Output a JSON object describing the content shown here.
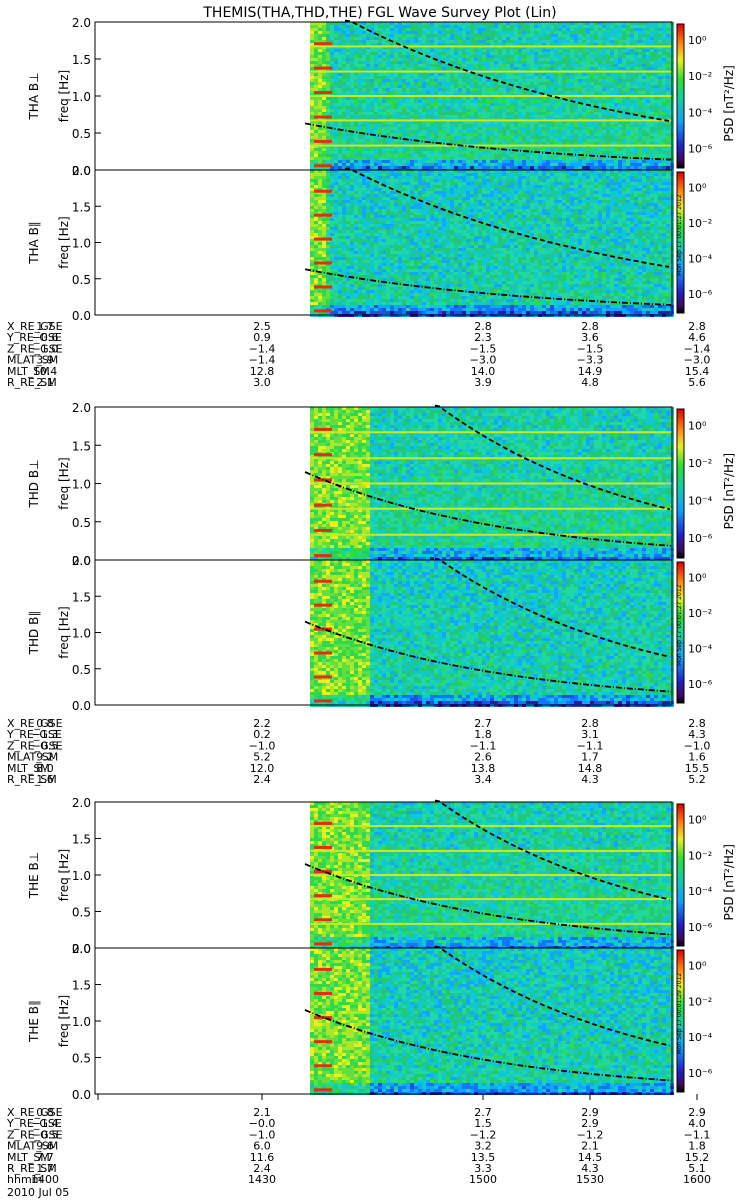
{
  "title": "THEMIS(THA,THD,THE) FGL Wave Survey Plot (Lin)",
  "ylabel_unit": "freq [Hz]",
  "colorbar_label": "PSD [nT²/Hz]",
  "colorbar_ticks": [
    "10⁰",
    "10⁻²",
    "10⁻⁴",
    "10⁻⁶"
  ],
  "stamps": [
    "Mon Sep 17 00:01:27 2012",
    "Mon Sep 17 00:01:27 2012",
    "Mon Sep 17 00:01:29 2012"
  ],
  "date_label": "2010 Jul 05",
  "colors": {
    "background_spectrum": "#20c8a0",
    "line_color": "#000000"
  },
  "chart_data": [
    {
      "type": "heatmap",
      "probe": "THA",
      "panel_label": "THA B⊥",
      "ylabel": "freq [Hz]",
      "ylim": [
        0,
        2.0
      ],
      "yticks": [
        "0.0",
        "0.5",
        "1.0",
        "1.5",
        "2.0"
      ],
      "data_start_hhmm": 1445
    },
    {
      "type": "heatmap",
      "probe": "THA",
      "panel_label": "THA B∥",
      "ylabel": "freq [Hz]",
      "ylim": [
        0,
        2.0
      ],
      "yticks": [
        "0.0",
        "0.5",
        "1.0",
        "1.5",
        "2.0"
      ],
      "data_start_hhmm": 1445
    },
    {
      "type": "heatmap",
      "probe": "THD",
      "panel_label": "THD B⊥",
      "ylabel": "freq [Hz]",
      "ylim": [
        0,
        2.0
      ],
      "yticks": [
        "0.0",
        "0.5",
        "1.0",
        "1.5",
        "2.0"
      ],
      "data_start_hhmm": 1445
    },
    {
      "type": "heatmap",
      "probe": "THD",
      "panel_label": "THD B∥",
      "ylabel": "freq [Hz]",
      "ylim": [
        0,
        2.0
      ],
      "yticks": [
        "0.0",
        "0.5",
        "1.0",
        "1.5",
        "2.0"
      ],
      "data_start_hhmm": 1445
    },
    {
      "type": "heatmap",
      "probe": "THE",
      "panel_label": "THE B⊥",
      "ylabel": "freq [Hz]",
      "ylim": [
        0,
        2.0
      ],
      "yticks": [
        "0.0",
        "0.5",
        "1.0",
        "1.5",
        "2.0"
      ],
      "data_start_hhmm": 1445
    },
    {
      "type": "heatmap",
      "probe": "THE",
      "panel_label": "THE B∥",
      "ylabel": "freq [Hz]",
      "ylim": [
        0,
        2.0
      ],
      "yticks": [
        "0.0",
        "0.5",
        "1.0",
        "1.5",
        "2.0"
      ],
      "data_start_hhmm": 1445
    }
  ],
  "ephemeris": [
    {
      "rows": [
        {
          "label": "X_RE_GSE",
          "values": [
            "1.7",
            "2.5",
            "2.8",
            "2.8",
            "2.8"
          ]
        },
        {
          "label": "Y_RE_GSE",
          "values": [
            "−0.6",
            "0.9",
            "2.3",
            "3.6",
            "4.6"
          ]
        },
        {
          "label": "Z_RE_GSE",
          "values": [
            "−1.0",
            "−1.4",
            "−1.5",
            "−1.5",
            "−1.4"
          ]
        },
        {
          "label": "MLAT_SM",
          "values": [
            "3.9",
            "−1.4",
            "−3.0",
            "−3.3",
            "−3.0"
          ]
        },
        {
          "label": "MLT_SM",
          "values": [
            "10.4",
            "12.8",
            "14.0",
            "14.9",
            "15.4"
          ]
        },
        {
          "label": "R_RE_SM",
          "values": [
            "2.1",
            "3.0",
            "3.9",
            "4.8",
            "5.6"
          ]
        }
      ]
    },
    {
      "rows": [
        {
          "label": "X_RE_GSE",
          "values": [
            "0.8",
            "2.2",
            "2.7",
            "2.8",
            "2.8"
          ]
        },
        {
          "label": "Y_RE_GSE",
          "values": [
            "−1.3",
            "0.2",
            "1.8",
            "3.1",
            "4.3"
          ]
        },
        {
          "label": "Z_RE_GSE",
          "values": [
            "−0.5",
            "−1.0",
            "−1.1",
            "−1.1",
            "−1.0"
          ]
        },
        {
          "label": "MLAT_SM",
          "values": [
            "9.2",
            "5.2",
            "2.6",
            "1.7",
            "1.6"
          ]
        },
        {
          "label": "MLT_SM",
          "values": [
            "8.0",
            "12.0",
            "13.8",
            "14.8",
            "15.5"
          ]
        },
        {
          "label": "R_RE_SM",
          "values": [
            "1.6",
            "2.4",
            "3.4",
            "4.3",
            "5.2"
          ]
        }
      ]
    },
    {
      "rows": [
        {
          "label": "X_RE_GSE",
          "values": [
            "0.8",
            "2.1",
            "2.7",
            "2.9",
            "2.9"
          ]
        },
        {
          "label": "Y_RE_GSE",
          "values": [
            "−1.4",
            "−0.0",
            "1.5",
            "2.9",
            "4.0"
          ]
        },
        {
          "label": "Z_RE_GSE",
          "values": [
            "−0.5",
            "−1.0",
            "−1.2",
            "−1.2",
            "−1.1"
          ]
        },
        {
          "label": "MLAT_SM",
          "values": [
            "9.6",
            "6.0",
            "3.2",
            "2.1",
            "1.8"
          ]
        },
        {
          "label": "MLT_SM",
          "values": [
            "7.7",
            "11.6",
            "13.5",
            "14.5",
            "15.2"
          ]
        },
        {
          "label": "R_RE_SM",
          "values": [
            "1.7",
            "2.4",
            "3.3",
            "4.3",
            "5.1"
          ]
        },
        {
          "label": "hhmm",
          "values": [
            "1400",
            "1430",
            "1500",
            "1530",
            "1600"
          ]
        }
      ]
    }
  ]
}
